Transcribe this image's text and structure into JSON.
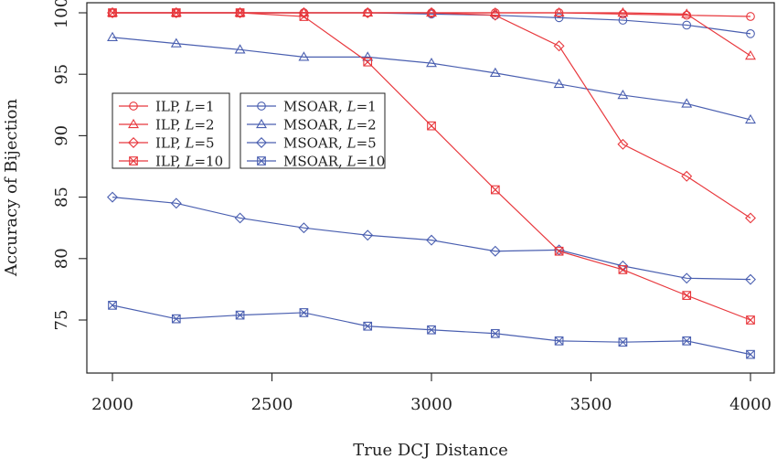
{
  "chart_data": {
    "type": "line",
    "xlabel": "True DCJ Distance",
    "ylabel": "Accuracy of Bijection",
    "xlim": [
      2000,
      4000
    ],
    "ylim": [
      72,
      100
    ],
    "x_ticks": [
      2000,
      2500,
      3000,
      3500,
      4000
    ],
    "y_ticks": [
      75,
      80,
      85,
      90,
      95,
      100
    ],
    "grid": false,
    "x": [
      2000,
      2200,
      2400,
      2600,
      2800,
      3000,
      3200,
      3400,
      3600,
      3800,
      4000
    ],
    "series": [
      {
        "name": "ILP, L=1",
        "label_prefix": "ILP, ",
        "label_var": "L",
        "label_suffix": "=1",
        "color": "#e8383d",
        "marker": "circle",
        "values": [
          100,
          100,
          100,
          100,
          100,
          100,
          100,
          100,
          99.9,
          99.8,
          99.7
        ]
      },
      {
        "name": "ILP, L=2",
        "label_prefix": "ILP, ",
        "label_var": "L",
        "label_suffix": "=2",
        "color": "#e8383d",
        "marker": "triangle",
        "values": [
          100,
          100,
          100,
          100,
          100,
          100,
          100,
          100,
          100,
          99.9,
          96.5
        ]
      },
      {
        "name": "ILP, L=5",
        "label_prefix": "ILP, ",
        "label_var": "L",
        "label_suffix": "=5",
        "color": "#e8383d",
        "marker": "diamond",
        "values": [
          100,
          100,
          100,
          100,
          100,
          100,
          99.8,
          97.3,
          89.3,
          86.7,
          83.3
        ]
      },
      {
        "name": "ILP, L=10",
        "label_prefix": "ILP, ",
        "label_var": "L",
        "label_suffix": "=10",
        "color": "#e8383d",
        "marker": "boxx",
        "values": [
          100,
          100,
          100,
          99.7,
          96,
          90.8,
          85.6,
          80.6,
          79.1,
          77,
          75
        ]
      },
      {
        "name": "MSOAR, L=1",
        "label_prefix": "MSOAR, ",
        "label_var": "L",
        "label_suffix": "=1",
        "color": "#4a5fb0",
        "marker": "circle",
        "values": [
          100,
          100,
          100,
          100,
          100,
          99.9,
          99.8,
          99.6,
          99.4,
          99,
          98.3
        ]
      },
      {
        "name": "MSOAR, L=2",
        "label_prefix": "MSOAR, ",
        "label_var": "L",
        "label_suffix": "=2",
        "color": "#4a5fb0",
        "marker": "triangle",
        "values": [
          98,
          97.5,
          97,
          96.4,
          96.4,
          95.9,
          95.1,
          94.2,
          93.3,
          92.6,
          91.3
        ]
      },
      {
        "name": "MSOAR, L=5",
        "label_prefix": "MSOAR, ",
        "label_var": "L",
        "label_suffix": "=5",
        "color": "#4a5fb0",
        "marker": "diamond",
        "values": [
          85,
          84.5,
          83.3,
          82.5,
          81.9,
          81.5,
          80.6,
          80.7,
          79.4,
          78.4,
          78.3
        ]
      },
      {
        "name": "MSOAR, L=10",
        "label_prefix": "MSOAR, ",
        "label_var": "L",
        "label_suffix": "=10",
        "color": "#4a5fb0",
        "marker": "boxx",
        "values": [
          76.2,
          75.1,
          75.4,
          75.6,
          74.5,
          74.2,
          73.9,
          73.3,
          73.2,
          73.3,
          72.2
        ]
      }
    ],
    "legend_placement": "center-left"
  }
}
